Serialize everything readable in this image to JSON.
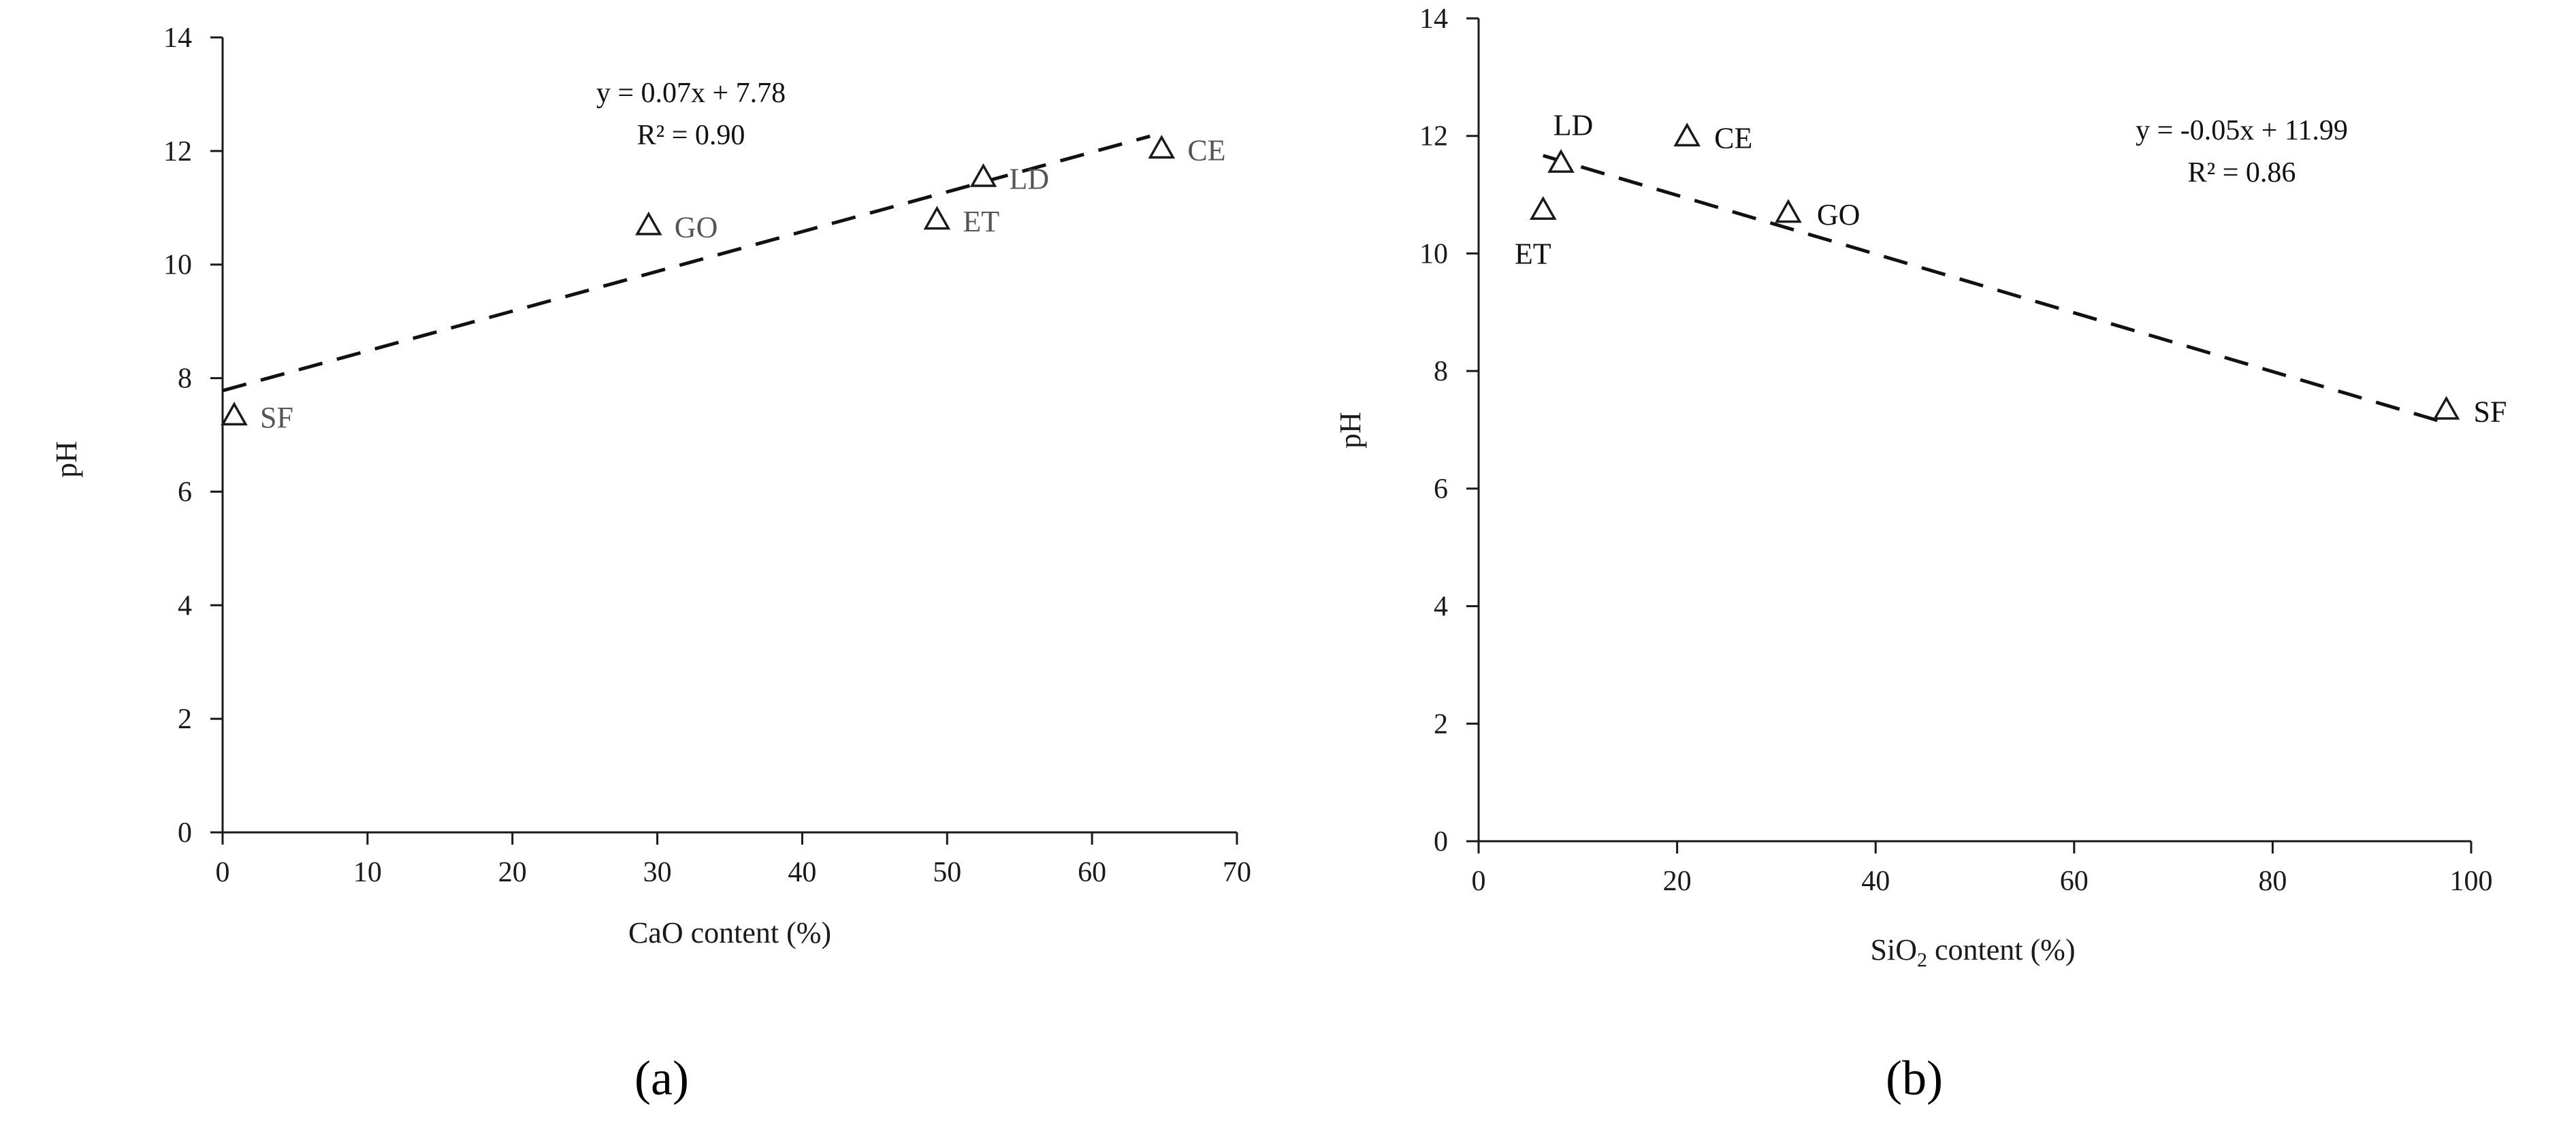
{
  "colors": {
    "axis": "#1a1a1a",
    "marker": "#1a1a1a",
    "trend": "#111111",
    "label_a": "#555555",
    "label_b": "#111111"
  },
  "chart_data": [
    {
      "panel": "(a)",
      "type": "scatter",
      "xlabel": "CaO content (%)",
      "ylabel": "pH",
      "xlim": [
        0,
        70
      ],
      "ylim": [
        0,
        14
      ],
      "xticks": [
        0,
        10,
        20,
        30,
        40,
        50,
        60,
        70
      ],
      "yticks": [
        0,
        2,
        4,
        6,
        8,
        10,
        12,
        14
      ],
      "marker": "open-triangle",
      "grid": false,
      "points": [
        {
          "label": "SF",
          "x": 0.8,
          "y": 7.35
        },
        {
          "label": "GO",
          "x": 29.4,
          "y": 10.7
        },
        {
          "label": "ET",
          "x": 49.3,
          "y": 10.8
        },
        {
          "label": "LD",
          "x": 52.5,
          "y": 11.55
        },
        {
          "label": "CE",
          "x": 64.8,
          "y": 12.05
        }
      ],
      "trendline": {
        "x_from": 0,
        "x_to": 64,
        "slope": 0.07,
        "intercept": 7.78,
        "style": "dashed"
      },
      "equation": "y = 0.07x + 7.78",
      "r2": "R² = 0.90"
    },
    {
      "panel": "(b)",
      "type": "scatter",
      "xlabel": "SiO2 content (%)",
      "xlabel_parts": [
        "SiO",
        "2",
        " content (%)"
      ],
      "ylabel": "pH",
      "xlim": [
        0,
        100
      ],
      "ylim": [
        0,
        14
      ],
      "xticks": [
        0,
        20,
        40,
        60,
        80,
        100
      ],
      "yticks": [
        0,
        2,
        4,
        6,
        8,
        10,
        12,
        14
      ],
      "marker": "open-triangle",
      "grid": false,
      "points": [
        {
          "label": "ET",
          "x": 6.5,
          "y": 10.75
        },
        {
          "label": "LD",
          "x": 8.3,
          "y": 11.55
        },
        {
          "label": "CE",
          "x": 21.0,
          "y": 12.0
        },
        {
          "label": "GO",
          "x": 31.2,
          "y": 10.7
        },
        {
          "label": "SF",
          "x": 97.5,
          "y": 7.35
        }
      ],
      "trendline": {
        "x_from": 6.5,
        "x_to": 97.5,
        "slope": -0.05,
        "intercept": 11.99,
        "style": "dashed"
      },
      "equation": "y = -0.05x + 11.99",
      "r2": "R² = 0.86"
    }
  ]
}
